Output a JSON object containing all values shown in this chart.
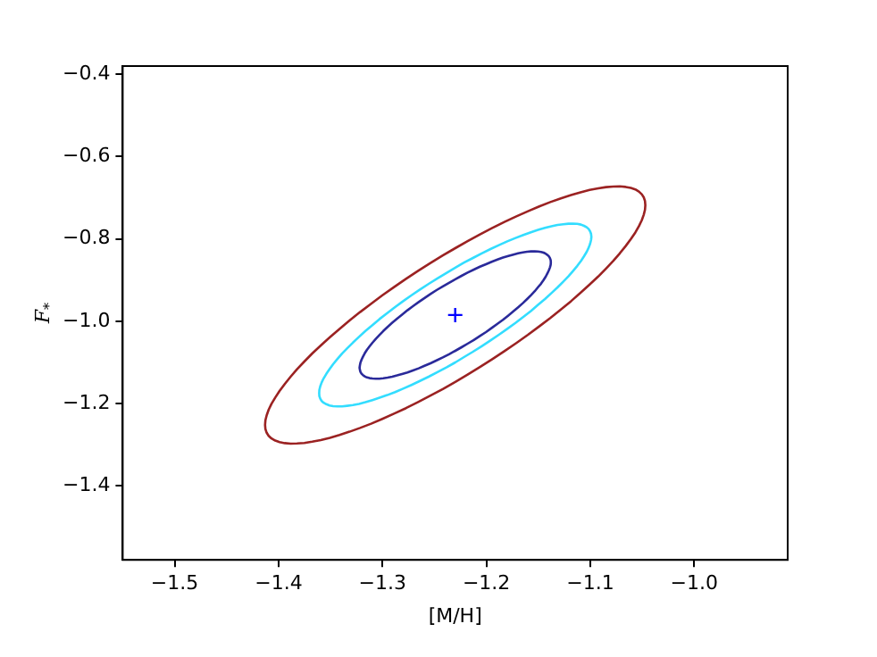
{
  "chart_data": {
    "type": "scatter",
    "xlabel": "[M/H]",
    "ylabel": "F$_{*}$",
    "xlim": [
      -1.55,
      -0.91
    ],
    "ylim": [
      -1.58,
      -0.38
    ],
    "xticks": [
      {
        "value": -1.5,
        "label": "−1.5"
      },
      {
        "value": -1.4,
        "label": "−1.4"
      },
      {
        "value": -1.3,
        "label": "−1.3"
      },
      {
        "value": -1.2,
        "label": "−1.2"
      },
      {
        "value": -1.1,
        "label": "−1.1"
      },
      {
        "value": -1.0,
        "label": "−1.0"
      }
    ],
    "yticks": [
      {
        "value": -1.4,
        "label": "−1.4"
      },
      {
        "value": -1.2,
        "label": "−1.2"
      },
      {
        "value": -1.0,
        "label": "−1.0"
      },
      {
        "value": -0.8,
        "label": "−0.8"
      },
      {
        "value": -0.6,
        "label": "−0.6"
      },
      {
        "value": -0.4,
        "label": "−0.4"
      }
    ],
    "grid": false,
    "legend": false,
    "marker": "cross",
    "series": [
      {
        "color": "#0000ff",
        "x": [
          -1.23
        ],
        "values": [
          -0.985
        ]
      }
    ]
  }
}
